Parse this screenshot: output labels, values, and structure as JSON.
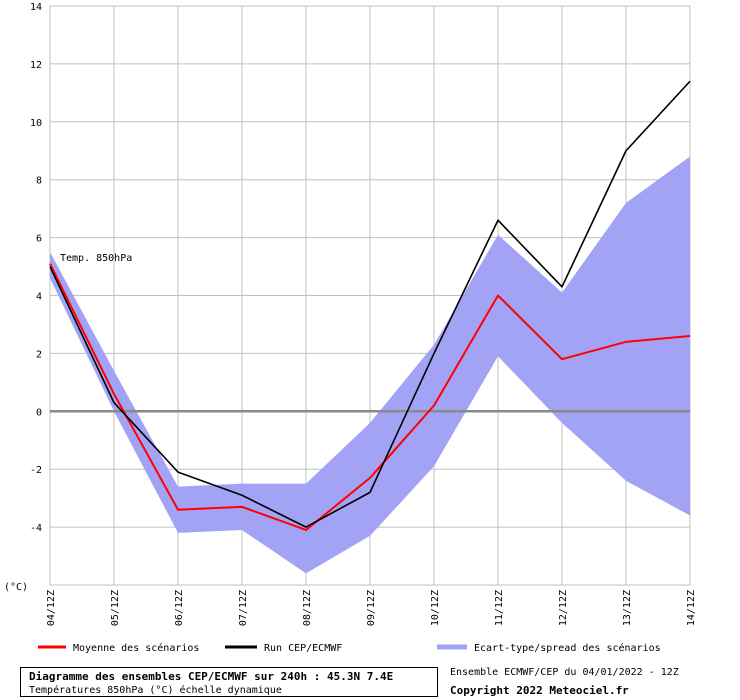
{
  "chart_data": {
    "type": "line",
    "annotation": "Temp. 850hPa",
    "y_unit_label": "(°C)",
    "categories": [
      "04/12Z",
      "05/12Z",
      "06/12Z",
      "07/12Z",
      "08/12Z",
      "09/12Z",
      "10/12Z",
      "11/12Z",
      "12/12Z",
      "13/12Z",
      "14/12Z"
    ],
    "ylim": [
      -6,
      14
    ],
    "yticks": [
      -4,
      -2,
      0,
      2,
      4,
      6,
      8,
      10,
      12,
      14
    ],
    "grid": true,
    "series": [
      {
        "name": "Moyenne des scénarios",
        "color": "#ff0000",
        "values": [
          5.1,
          0.6,
          -3.4,
          -3.3,
          -4.1,
          -2.3,
          0.2,
          4.0,
          1.8,
          2.4,
          2.6
        ]
      },
      {
        "name": "Run CEP/ECMWF",
        "color": "#000000",
        "values": [
          5.0,
          0.3,
          -2.1,
          -2.9,
          -4.0,
          -2.8,
          2.0,
          6.6,
          4.3,
          9.0,
          11.4
        ]
      }
    ],
    "band": {
      "name": "Ecart-type/spread des scénarios",
      "color": "#a3a3f5",
      "upper": [
        5.5,
        1.4,
        -2.6,
        -2.5,
        -2.5,
        -0.4,
        2.3,
        6.1,
        4.1,
        7.2,
        8.8
      ],
      "lower": [
        4.6,
        0.0,
        -4.2,
        -4.1,
        -5.6,
        -4.3,
        -1.9,
        1.9,
        -0.4,
        -2.4,
        -3.6
      ]
    }
  },
  "footer": {
    "title": "Diagramme des ensembles CEP/ECMWF sur 240h : 45.3N 7.4E",
    "subtitle": "Températures 850hPa (°C) échelle dynamique",
    "run_info": "Ensemble ECMWF/CEP du 04/01/2022 - 12Z",
    "copyright": "Copyright 2022 Meteociel.fr"
  }
}
